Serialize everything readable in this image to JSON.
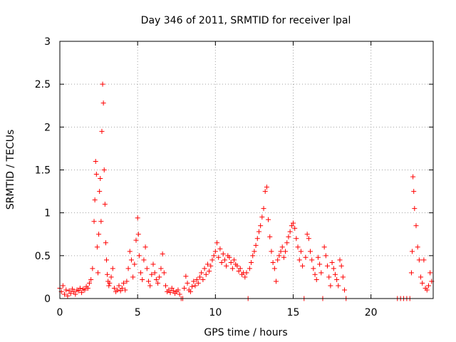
{
  "chart_data": {
    "type": "scatter",
    "title": "Day 346 of 2011, SRMTID for receiver lpal",
    "xlabel": "GPS time / hours",
    "ylabel": "SRMTID / TECUs",
    "xlim": [
      0,
      24
    ],
    "ylim": [
      0,
      3
    ],
    "x_ticks": [
      0,
      5,
      10,
      15,
      20
    ],
    "x_tick_labels": [
      "0",
      "5",
      "10",
      "15",
      "20"
    ],
    "y_ticks": [
      0,
      0.5,
      1,
      1.5,
      2,
      2.5,
      3
    ],
    "y_tick_labels": [
      "0",
      "0.5",
      "1",
      "1.5",
      "2",
      "2.5",
      "3"
    ],
    "grid": true,
    "marker": "+",
    "color": "#ff0000",
    "series": [
      {
        "name": "SRMTID",
        "x": [
          0.0,
          0.1,
          0.2,
          0.3,
          0.4,
          0.5,
          0.6,
          0.7,
          0.8,
          0.9,
          1.0,
          1.1,
          1.2,
          1.3,
          1.4,
          1.5,
          1.6,
          1.7,
          1.8,
          1.9,
          2.0,
          2.1,
          2.2,
          2.25,
          2.3,
          2.35,
          2.4,
          2.45,
          2.5,
          2.55,
          2.6,
          2.65,
          2.7,
          2.75,
          2.8,
          2.85,
          2.9,
          2.95,
          3.0,
          3.05,
          3.1,
          3.15,
          3.2,
          3.3,
          3.4,
          3.5,
          3.6,
          3.7,
          3.8,
          3.9,
          4.0,
          4.1,
          4.2,
          4.3,
          4.4,
          4.5,
          4.6,
          4.7,
          4.8,
          4.9,
          5.0,
          5.05,
          5.1,
          5.2,
          5.3,
          5.4,
          5.5,
          5.6,
          5.7,
          5.8,
          5.9,
          6.0,
          6.1,
          6.2,
          6.3,
          6.4,
          6.5,
          6.6,
          6.7,
          6.8,
          6.9,
          7.0,
          7.1,
          7.2,
          7.3,
          7.4,
          7.5,
          7.6,
          7.7,
          7.8,
          7.9,
          8.0,
          8.1,
          8.2,
          8.3,
          8.4,
          8.5,
          8.6,
          8.7,
          8.8,
          8.9,
          9.0,
          9.1,
          9.2,
          9.3,
          9.4,
          9.5,
          9.6,
          9.7,
          9.8,
          9.9,
          10.0,
          10.1,
          10.2,
          10.3,
          10.4,
          10.5,
          10.6,
          10.7,
          10.8,
          10.9,
          11.0,
          11.1,
          11.2,
          11.3,
          11.4,
          11.5,
          11.6,
          11.7,
          11.8,
          11.9,
          12.0,
          12.1,
          12.2,
          12.3,
          12.4,
          12.5,
          12.6,
          12.7,
          12.8,
          12.9,
          13.0,
          13.1,
          13.2,
          13.3,
          13.4,
          13.5,
          13.6,
          13.7,
          13.8,
          13.9,
          14.0,
          14.1,
          14.2,
          14.3,
          14.4,
          14.5,
          14.6,
          14.7,
          14.8,
          14.9,
          15.0,
          15.1,
          15.2,
          15.3,
          15.4,
          15.5,
          15.6,
          15.7,
          15.8,
          15.9,
          16.0,
          16.1,
          16.2,
          16.3,
          16.4,
          16.5,
          16.6,
          16.7,
          16.8,
          16.9,
          17.0,
          17.1,
          17.2,
          17.3,
          17.4,
          17.5,
          17.6,
          17.7,
          17.8,
          17.9,
          18.0,
          18.1,
          18.2,
          18.3,
          18.4,
          21.7,
          21.9,
          22.1,
          22.3,
          22.5,
          22.6,
          22.65,
          22.7,
          22.75,
          22.8,
          22.9,
          23.0,
          23.1,
          23.2,
          23.3,
          23.4,
          23.5,
          23.6,
          23.7,
          23.8,
          23.9
        ],
        "y": [
          0.12,
          0.08,
          0.15,
          0.05,
          0.1,
          0.03,
          0.09,
          0.06,
          0.11,
          0.08,
          0.05,
          0.1,
          0.09,
          0.12,
          0.07,
          0.11,
          0.1,
          0.14,
          0.12,
          0.18,
          0.22,
          0.35,
          0.9,
          1.15,
          1.6,
          1.45,
          0.6,
          0.3,
          0.75,
          1.25,
          1.4,
          0.9,
          1.95,
          2.5,
          2.28,
          1.5,
          1.1,
          0.65,
          0.45,
          0.28,
          0.2,
          0.15,
          0.18,
          0.25,
          0.35,
          0.12,
          0.08,
          0.1,
          0.15,
          0.09,
          0.12,
          0.18,
          0.1,
          0.2,
          0.35,
          0.55,
          0.45,
          0.25,
          0.4,
          0.68,
          0.94,
          0.75,
          0.5,
          0.3,
          0.22,
          0.45,
          0.6,
          0.35,
          0.2,
          0.15,
          0.28,
          0.4,
          0.3,
          0.22,
          0.18,
          0.25,
          0.35,
          0.52,
          0.3,
          0.15,
          0.08,
          0.1,
          0.07,
          0.12,
          0.09,
          0.06,
          0.08,
          0.1,
          0.05,
          0.0,
          0.0,
          0.12,
          0.26,
          0.18,
          0.1,
          0.08,
          0.14,
          0.2,
          0.15,
          0.22,
          0.18,
          0.25,
          0.3,
          0.22,
          0.35,
          0.28,
          0.4,
          0.32,
          0.38,
          0.45,
          0.5,
          0.55,
          0.65,
          0.48,
          0.58,
          0.42,
          0.52,
          0.45,
          0.38,
          0.5,
          0.48,
          0.42,
          0.35,
          0.45,
          0.4,
          0.38,
          0.32,
          0.35,
          0.28,
          0.3,
          0.25,
          0.3,
          0.0,
          0.35,
          0.42,
          0.5,
          0.55,
          0.62,
          0.7,
          0.78,
          0.85,
          0.95,
          1.05,
          1.25,
          1.3,
          0.92,
          0.72,
          0.55,
          0.42,
          0.35,
          0.2,
          0.45,
          0.5,
          0.55,
          0.6,
          0.48,
          0.55,
          0.65,
          0.72,
          0.78,
          0.85,
          0.88,
          0.82,
          0.7,
          0.6,
          0.45,
          0.55,
          0.38,
          0.0,
          0.48,
          0.75,
          0.7,
          0.55,
          0.45,
          0.35,
          0.28,
          0.22,
          0.48,
          0.4,
          0.3,
          0.0,
          0.6,
          0.5,
          0.38,
          0.25,
          0.15,
          0.42,
          0.35,
          0.28,
          0.22,
          0.15,
          0.45,
          0.38,
          0.25,
          0.1,
          0.0,
          0.0,
          0.0,
          0.0,
          0.0,
          0.0,
          0.3,
          0.55,
          1.42,
          1.25,
          1.05,
          0.85,
          0.6,
          0.45,
          0.25,
          0.18,
          0.45,
          0.12,
          0.1,
          0.15,
          0.3,
          0.2
        ]
      }
    ]
  }
}
